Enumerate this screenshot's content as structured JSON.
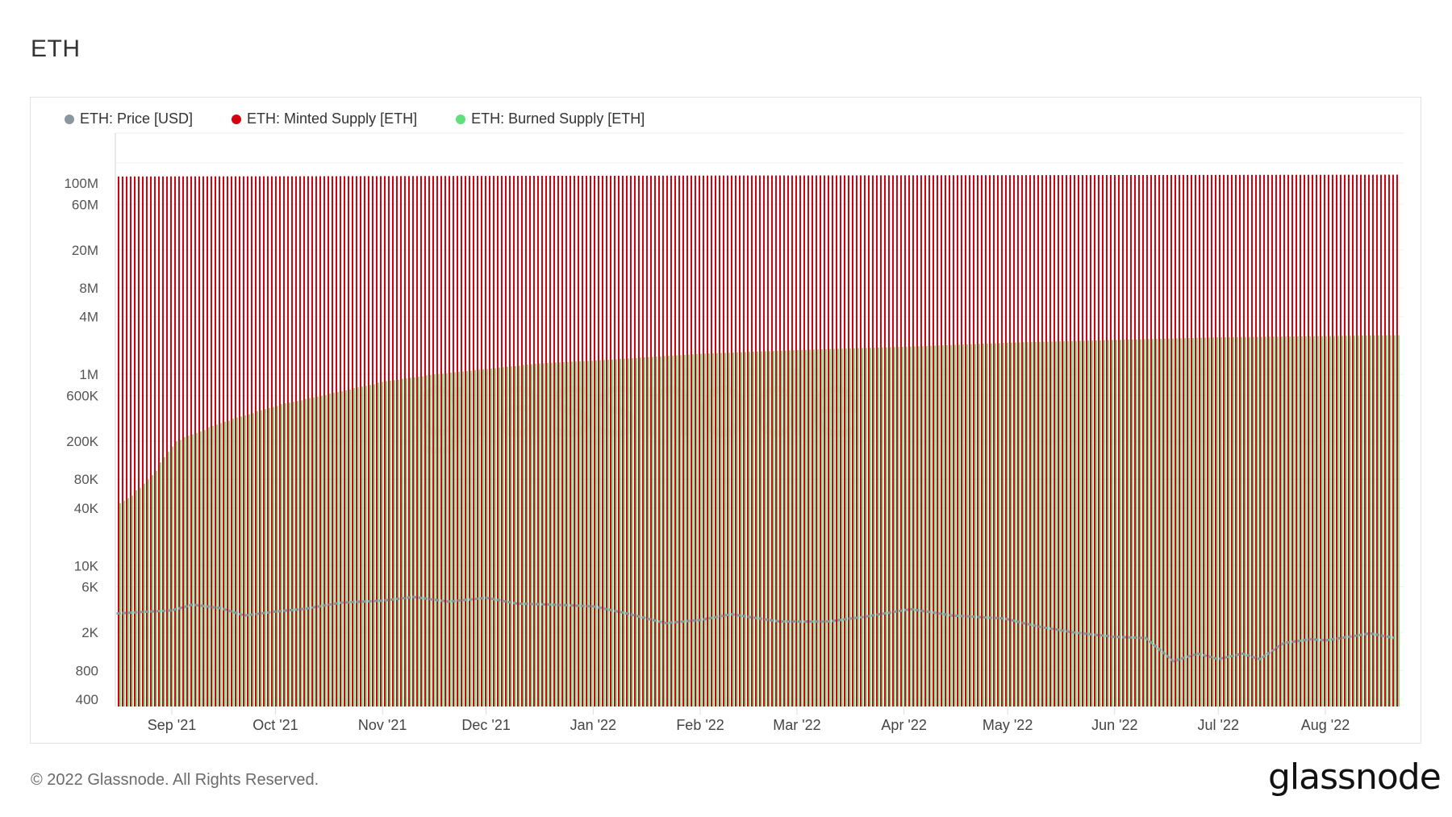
{
  "page": {
    "title": "ETH",
    "footer_copyright": "© 2022 Glassnode. All Rights Reserved.",
    "logo_text": "glassnode",
    "watermark_text": "glassnode"
  },
  "legend": [
    {
      "label": "ETH: Price [USD]",
      "color": "#8a979e"
    },
    {
      "label": "ETH: Minted Supply [ETH]",
      "color": "#d7000f"
    },
    {
      "label": "ETH: Burned Supply [ETH]",
      "color": "#5fe07a"
    }
  ],
  "chart_data": {
    "type": "bar",
    "title": "ETH",
    "xlabel": "",
    "ylabel": "",
    "yscale": "log",
    "ylim": [
      300,
      400000000
    ],
    "grid": true,
    "legend_position": "top-left",
    "y_ticks": [
      {
        "label": "100M",
        "value": 100000000
      },
      {
        "label": "60M",
        "value": 60000000
      },
      {
        "label": "20M",
        "value": 20000000
      },
      {
        "label": "8M",
        "value": 8000000
      },
      {
        "label": "4M",
        "value": 4000000
      },
      {
        "label": "1M",
        "value": 1000000
      },
      {
        "label": "600K",
        "value": 600000
      },
      {
        "label": "200K",
        "value": 200000
      },
      {
        "label": "80K",
        "value": 80000
      },
      {
        "label": "40K",
        "value": 40000
      },
      {
        "label": "10K",
        "value": 10000
      },
      {
        "label": "6K",
        "value": 6000
      },
      {
        "label": "2K",
        "value": 2000
      },
      {
        "label": "800",
        "value": 800
      },
      {
        "label": "400",
        "value": 400
      }
    ],
    "x_ticks": [
      "Sep '21",
      "Oct '21",
      "Nov '21",
      "Dec '21",
      "Jan '22",
      "Feb '22",
      "Mar '22",
      "Apr '22",
      "May '22",
      "Jun '22",
      "Jul '22",
      "Aug '22"
    ],
    "x_range": [
      "2021-08-16",
      "2022-08-21"
    ],
    "series": [
      {
        "name": "ETH: Minted Supply [ETH]",
        "type": "bar",
        "color": "#d7000f",
        "points": [
          [
            "2021-08-16",
            117200000
          ],
          [
            "2021-11-01",
            118300000
          ],
          [
            "2022-01-01",
            119300000
          ],
          [
            "2022-03-01",
            120200000
          ],
          [
            "2022-05-01",
            121000000
          ],
          [
            "2022-07-01",
            121800000
          ],
          [
            "2022-08-21",
            122400000
          ]
        ]
      },
      {
        "name": "ETH: Burned Supply [ETH]",
        "type": "bar",
        "color": "#5fe07a",
        "points": [
          [
            "2021-08-16",
            45000
          ],
          [
            "2021-08-22",
            65000
          ],
          [
            "2021-08-28",
            120000
          ],
          [
            "2021-09-01",
            200000
          ],
          [
            "2021-09-15",
            320000
          ],
          [
            "2021-10-01",
            480000
          ],
          [
            "2021-10-15",
            620000
          ],
          [
            "2021-11-01",
            850000
          ],
          [
            "2021-11-15",
            1000000
          ],
          [
            "2021-12-01",
            1150000
          ],
          [
            "2021-12-15",
            1300000
          ],
          [
            "2022-01-01",
            1400000
          ],
          [
            "2022-02-01",
            1650000
          ],
          [
            "2022-03-01",
            1800000
          ],
          [
            "2022-04-01",
            1950000
          ],
          [
            "2022-05-01",
            2150000
          ],
          [
            "2022-06-01",
            2300000
          ],
          [
            "2022-07-01",
            2450000
          ],
          [
            "2022-08-01",
            2520000
          ],
          [
            "2022-08-21",
            2570000
          ]
        ]
      },
      {
        "name": "ETH: Price [USD]",
        "type": "line",
        "color": "#8a979e",
        "points": [
          [
            "2021-08-16",
            3150
          ],
          [
            "2021-08-22",
            3250
          ],
          [
            "2021-09-01",
            3400
          ],
          [
            "2021-09-07",
            3900
          ],
          [
            "2021-09-15",
            3600
          ],
          [
            "2021-09-22",
            3000
          ],
          [
            "2021-10-01",
            3300
          ],
          [
            "2021-10-10",
            3550
          ],
          [
            "2021-10-20",
            4100
          ],
          [
            "2021-11-01",
            4300
          ],
          [
            "2021-11-10",
            4700
          ],
          [
            "2021-11-20",
            4200
          ],
          [
            "2021-12-01",
            4600
          ],
          [
            "2021-12-10",
            4000
          ],
          [
            "2021-12-20",
            3900
          ],
          [
            "2022-01-01",
            3750
          ],
          [
            "2022-01-10",
            3200
          ],
          [
            "2022-01-22",
            2500
          ],
          [
            "2022-02-01",
            2700
          ],
          [
            "2022-02-10",
            3100
          ],
          [
            "2022-02-24",
            2600
          ],
          [
            "2022-03-10",
            2600
          ],
          [
            "2022-03-20",
            2900
          ],
          [
            "2022-04-03",
            3500
          ],
          [
            "2022-04-15",
            3000
          ],
          [
            "2022-04-30",
            2800
          ],
          [
            "2022-05-10",
            2300
          ],
          [
            "2022-05-20",
            2000
          ],
          [
            "2022-06-01",
            1800
          ],
          [
            "2022-06-10",
            1750
          ],
          [
            "2022-06-18",
            1000
          ],
          [
            "2022-06-25",
            1200
          ],
          [
            "2022-07-01",
            1050
          ],
          [
            "2022-07-08",
            1200
          ],
          [
            "2022-07-13",
            1050
          ],
          [
            "2022-07-20",
            1550
          ],
          [
            "2022-07-28",
            1700
          ],
          [
            "2022-08-01",
            1650
          ],
          [
            "2022-08-14",
            1950
          ],
          [
            "2022-08-21",
            1750
          ]
        ]
      }
    ]
  }
}
